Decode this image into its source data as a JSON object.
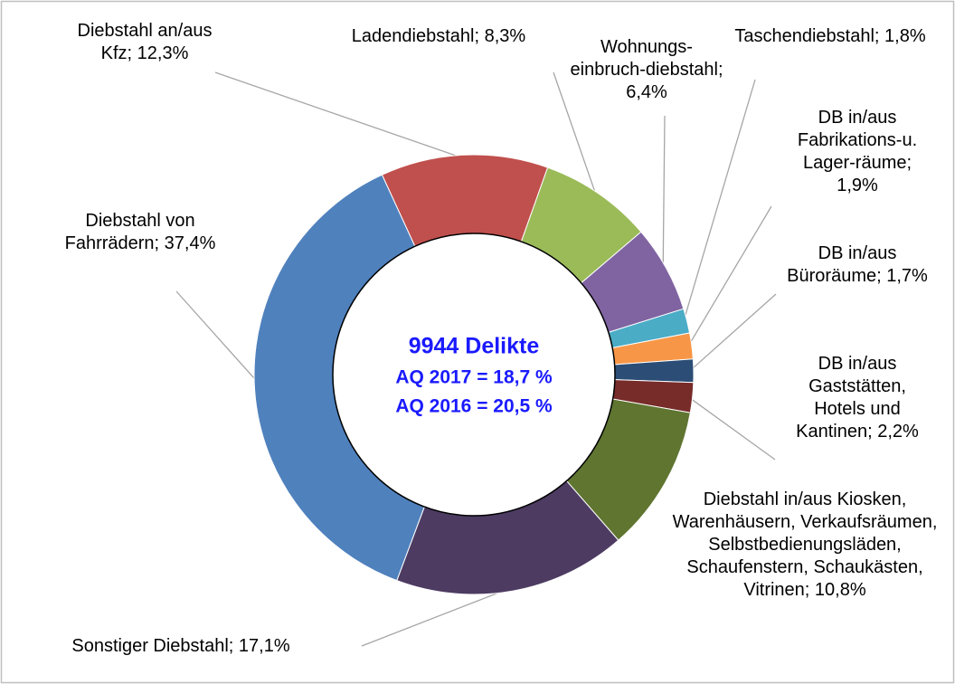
{
  "chart_data": {
    "type": "pie",
    "donut": true,
    "categories": [
      "Diebstahl an/aus Kfz;",
      "Ladendiebstahl;",
      "Wohnungs-einbruch-diebstahl;",
      "Taschendiebstahl;",
      "DB in/aus Fabrikations-u. Lager-räume;",
      "DB in/aus Büroräume;",
      "DB in/aus Gaststätten, Hotels und Kantinen;",
      "Diebstahl in/aus Kiosken, Warenhäusern, Verkaufsräumen, Selbstbedienungsläden, Schaufenstern, Schaukästen, Vitrinen;",
      "Sonstiger Diebstahl;",
      "Diebstahl von Fahrrädern;"
    ],
    "values": [
      12.3,
      8.3,
      6.4,
      1.8,
      1.9,
      1.7,
      2.2,
      10.8,
      17.1,
      37.4
    ],
    "value_labels": [
      "12,3%",
      "8,3%",
      "6,4%",
      "1,8%",
      "1,9%",
      "1,7%",
      "2,2%",
      "10,8%",
      "17,1%",
      "37,4%"
    ],
    "colors": [
      "#c0504d",
      "#9bbb59",
      "#8064a2",
      "#4bacc6",
      "#f79646",
      "#2c4d75",
      "#772c2a",
      "#5f7530",
      "#4d3b62",
      "#4f81bd"
    ],
    "center_text": [
      "9944 Delikte",
      "AQ 2017 = 18,7 %",
      "AQ 2016 = 20,5 %"
    ]
  }
}
